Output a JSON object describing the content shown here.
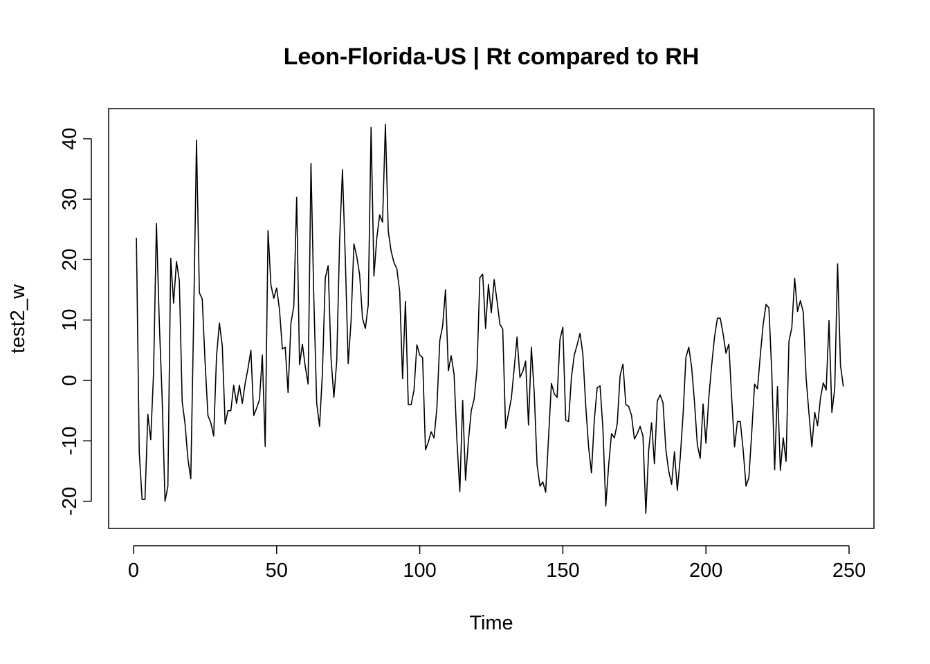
{
  "chart_data": {
    "type": "line",
    "title": "Leon-Florida-US | Rt compared to RH",
    "xlabel": "Time",
    "ylabel": "test2_w",
    "xlim": [
      -8.7,
      258.7
    ],
    "ylim": [
      -24.5,
      45.0
    ],
    "xticks": [
      0,
      50,
      100,
      150,
      200,
      250
    ],
    "yticks": [
      -20,
      -10,
      0,
      10,
      20,
      30,
      40
    ],
    "grid": false,
    "legend": "none",
    "colors": {
      "line": "#000000",
      "box": "#000000",
      "background": "#ffffff"
    },
    "series": [
      {
        "x_start": 1,
        "values": [
          23.6,
          -12.0,
          -19.7,
          -19.7,
          -5.6,
          -9.8,
          1.3,
          26.0,
          9.6,
          -3.0,
          -20.0,
          -17.5,
          20.2,
          12.8,
          19.7,
          16.5,
          -3.5,
          -7.2,
          -13.0,
          -16.3,
          10.0,
          39.8,
          14.5,
          13.5,
          3.0,
          -5.8,
          -7.0,
          -9.2,
          4.0,
          9.5,
          5.8,
          -7.2,
          -5.0,
          -5.0,
          -0.8,
          -3.8,
          -0.8,
          -3.8,
          -0.5,
          2.0,
          5.0,
          -5.8,
          -4.6,
          -3.2,
          4.2,
          -10.9,
          24.8,
          15.8,
          13.6,
          15.3,
          11.7,
          5.2,
          5.5,
          -2.0,
          9.5,
          12.3,
          30.3,
          2.6,
          6.0,
          2.3,
          -0.6,
          35.9,
          13.4,
          -3.8,
          -7.6,
          1.3,
          17.0,
          19.0,
          3.7,
          -2.8,
          3.2,
          23.1,
          34.9,
          20.0,
          2.8,
          9.8,
          22.6,
          20.5,
          17.5,
          10.3,
          8.6,
          12.5,
          41.9,
          17.3,
          23.6,
          27.4,
          26.2,
          42.4,
          24.7,
          21.4,
          19.5,
          18.5,
          14.7,
          0.3,
          13.1,
          -4.0,
          -4.0,
          -1.6,
          5.9,
          4.2,
          3.8,
          -11.5,
          -10.2,
          -8.5,
          -9.5,
          -4.5,
          6.6,
          9.0,
          15.0,
          1.6,
          4.1,
          1.0,
          -10.0,
          -18.4,
          -3.3,
          -16.5,
          -10.0,
          -5.0,
          -3.1,
          1.8,
          17.0,
          17.6,
          8.6,
          15.9,
          11.2,
          16.7,
          13.2,
          9.3,
          8.5,
          -7.9,
          -5.5,
          -3.0,
          2.0,
          7.2,
          0.5,
          1.5,
          3.2,
          -7.4,
          5.5,
          -2.0,
          -14.0,
          -17.5,
          -16.8,
          -18.5,
          -9.5,
          -0.5,
          -2.2,
          -2.8,
          6.8,
          8.8,
          -6.6,
          -6.8,
          0.5,
          4.2,
          5.9,
          7.8,
          4.3,
          -4.2,
          -11.0,
          -15.3,
          -6.5,
          -1.2,
          -0.9,
          -8.0,
          -20.8,
          -14.1,
          -8.8,
          -9.5,
          -7.2,
          0.8,
          2.7,
          -4.0,
          -4.3,
          -5.8,
          -9.7,
          -8.8,
          -7.6,
          -9.2,
          -22.0,
          -11.5,
          -7.0,
          -13.8,
          -3.4,
          -2.4,
          -3.7,
          -11.5,
          -15.0,
          -17.2,
          -11.8,
          -18.2,
          -12.9,
          -5.7,
          3.8,
          5.5,
          2.2,
          -3.6,
          -10.7,
          -12.9,
          -3.9,
          -10.4,
          -2.8,
          2.5,
          7.2,
          10.3,
          10.3,
          7.7,
          4.5,
          6.0,
          -3.0,
          -11.0,
          -6.8,
          -6.8,
          -11.5,
          -17.5,
          -16.1,
          -8.6,
          -0.6,
          -1.4,
          4.2,
          9.3,
          12.6,
          12.0,
          1.4,
          -14.8,
          -1.0,
          -14.9,
          -9.5,
          -13.4,
          6.5,
          8.7,
          16.9,
          11.4,
          13.2,
          11.3,
          0.4,
          -5.5,
          -11.0,
          -5.3,
          -7.5,
          -3.0,
          -0.4,
          -1.6,
          9.9,
          -5.3,
          -1.3,
          19.3,
          2.5,
          -1.0
        ]
      }
    ]
  }
}
